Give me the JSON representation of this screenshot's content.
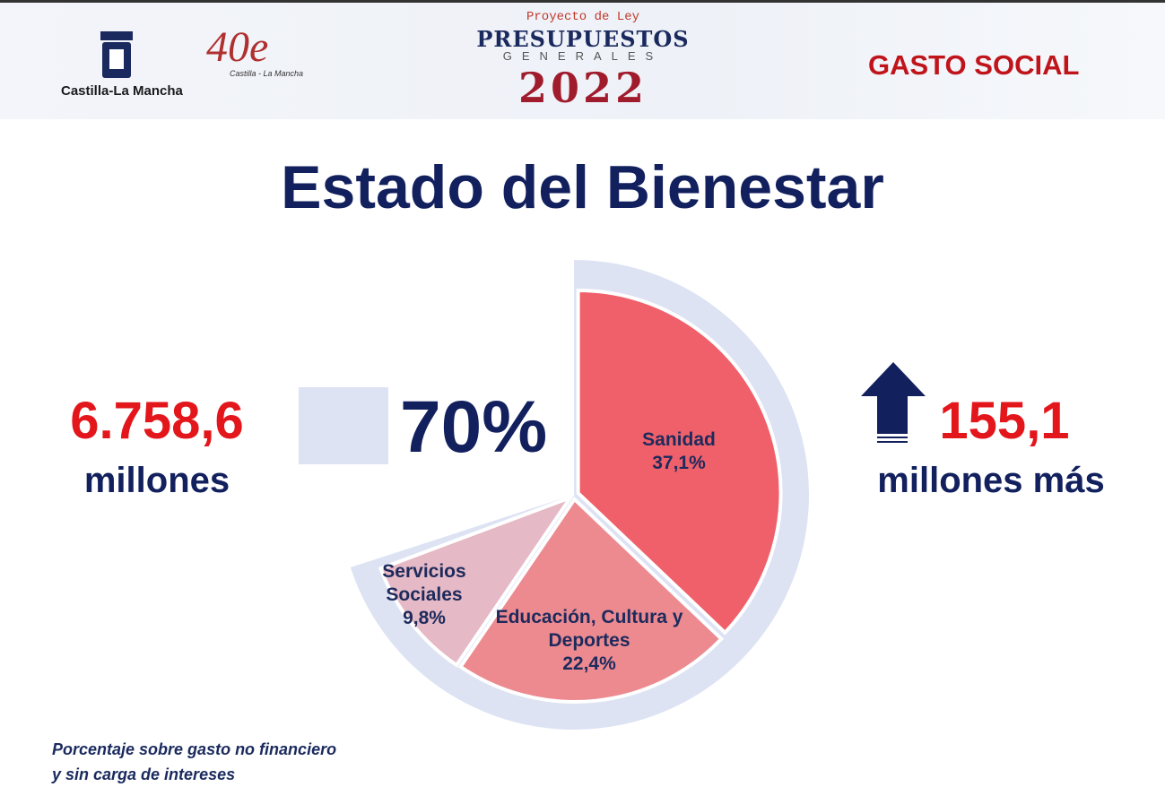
{
  "header": {
    "region": "Castilla-La Mancha",
    "anniversary": "40e",
    "anniversary_subtitle": "Castilla - La Mancha",
    "project": "Proyecto de Ley",
    "budget_title": "PRESUPUESTOS",
    "budget_subtitle": "GENERALES",
    "year": "2022",
    "section": "GASTO SOCIAL"
  },
  "title": "Estado del Bienestar",
  "total_amount": "6.758,6",
  "total_unit": "millones",
  "increase": "155,1",
  "increase_unit": "millones más",
  "footnote": [
    "Porcentaje sobre gasto no financiero",
    "y sin carga de intereses"
  ],
  "chart_data": {
    "type": "pie",
    "categories": [
      "Sanidad",
      "Educación, Cultura y Deportes",
      "Servicios Sociales"
    ],
    "values": [
      37.1,
      22.4,
      9.8
    ],
    "value_labels": [
      "37,1%",
      "22,4%",
      "9,8%"
    ],
    "colors": [
      "#f0606a",
      "#ec8a90",
      "#e5b9c5"
    ],
    "total": 70,
    "total_label": "70%",
    "ring_color": "#dde3f3"
  }
}
